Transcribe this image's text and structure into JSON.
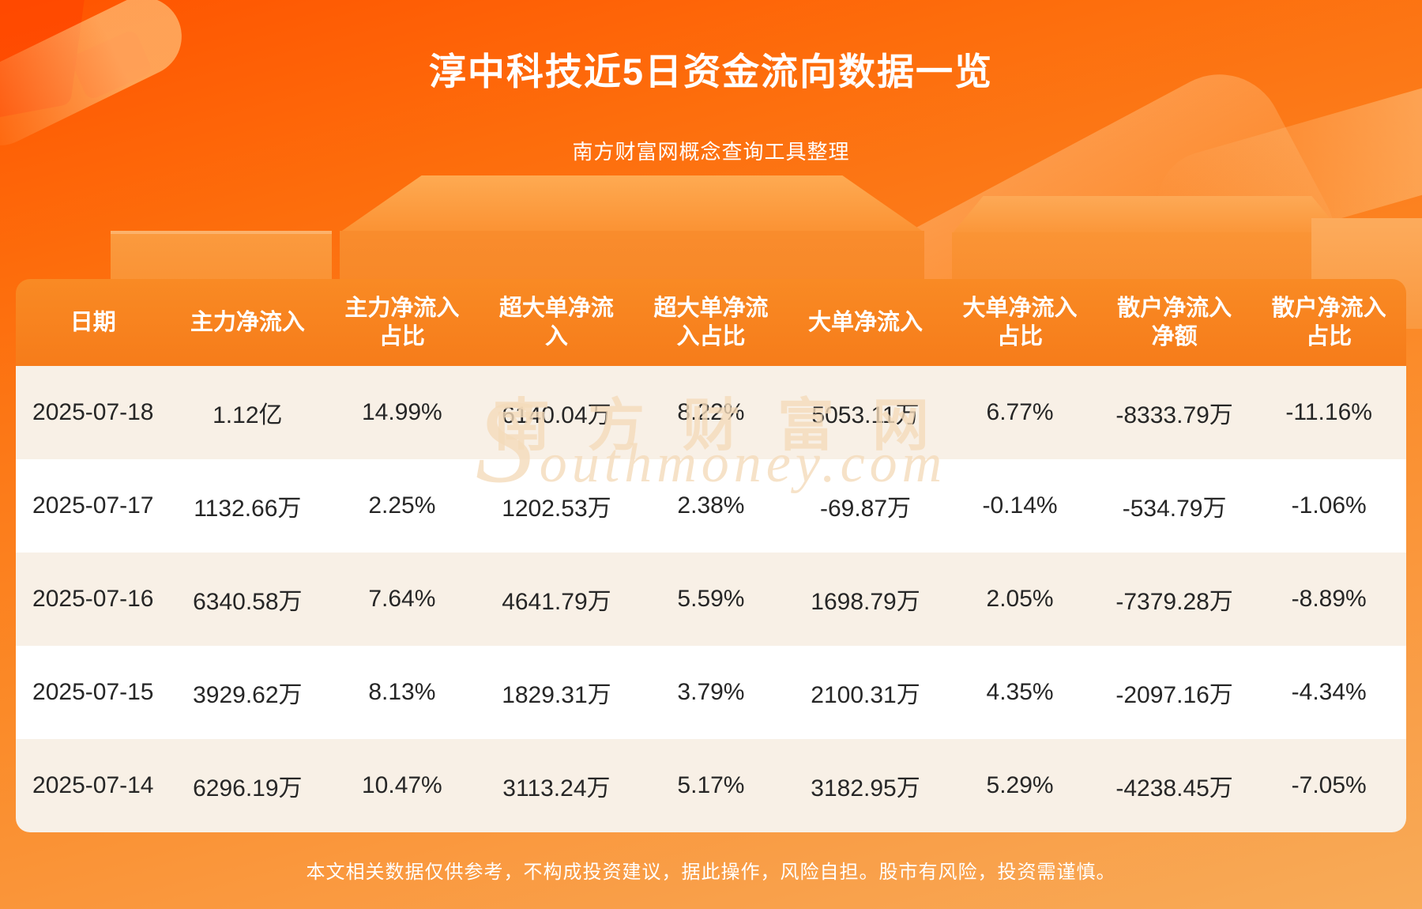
{
  "page": {
    "title": "淳中科技近5日资金流向数据一览",
    "subtitle": "南方财富网概念查询工具整理",
    "disclaimer": "本文相关数据仅供参考，不构成投资建议，据此操作，风险自担。股市有风险，投资需谨慎。",
    "watermark": {
      "line1": "南方财富网",
      "line2": "Southmoney.com"
    },
    "colors": {
      "background_top": "#ff5400",
      "background_bottom": "#f8ab58",
      "header_bg": "#f67c1a",
      "row_cream": "#f8f0e6",
      "row_white": "#ffffff",
      "text_dark": "#262626",
      "text_white": "#ffffff"
    }
  },
  "chart_data": {
    "type": "table",
    "title": "淳中科技近5日资金流向数据一览",
    "columns": [
      "日期",
      "主力净流入",
      "主力净流入占比",
      "超大单净流入",
      "超大单净流入占比",
      "大单净流入",
      "大单净流入占比",
      "散户净流入净额",
      "散户净流入占比"
    ],
    "columns_display": [
      "日期",
      "主力净流入",
      "主力净流入\n占比",
      "超大单净流\n入",
      "超大单净流\n入占比",
      "大单净流入",
      "大单净流入\n占比",
      "散户净流入\n净额",
      "散户净流入\n占比"
    ],
    "rows": [
      [
        "2025-07-18",
        "1.12亿",
        "14.99%",
        "6140.04万",
        "8.22%",
        "5053.11万",
        "6.77%",
        "-8333.79万",
        "-11.16%"
      ],
      [
        "2025-07-17",
        "1132.66万",
        "2.25%",
        "1202.53万",
        "2.38%",
        "-69.87万",
        "-0.14%",
        "-534.79万",
        "-1.06%"
      ],
      [
        "2025-07-16",
        "6340.58万",
        "7.64%",
        "4641.79万",
        "5.59%",
        "1698.79万",
        "2.05%",
        "-7379.28万",
        "-8.89%"
      ],
      [
        "2025-07-15",
        "3929.62万",
        "8.13%",
        "1829.31万",
        "3.79%",
        "2100.31万",
        "4.35%",
        "-2097.16万",
        "-4.34%"
      ],
      [
        "2025-07-14",
        "6296.19万",
        "10.47%",
        "3113.24万",
        "5.17%",
        "3182.95万",
        "5.29%",
        "-4238.45万",
        "-7.05%"
      ]
    ],
    "layout": {
      "legend": false,
      "grid": false,
      "row_striping": "odd rows cream, even rows white",
      "header_position": "top"
    }
  }
}
